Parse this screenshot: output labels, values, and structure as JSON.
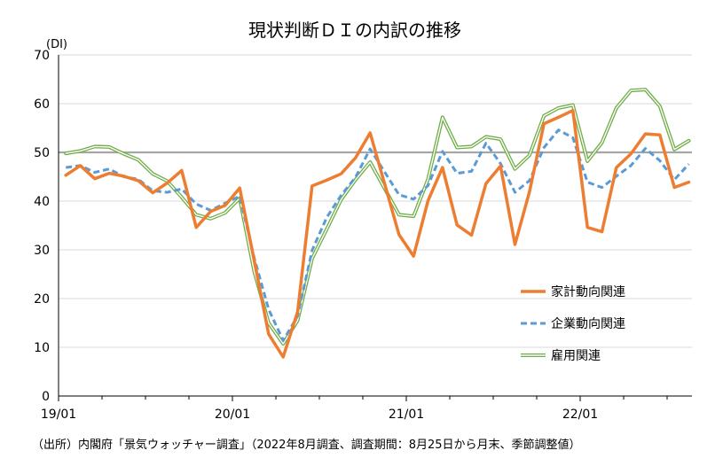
{
  "chart_data": {
    "type": "line",
    "title": "現状判断ＤＩの内訳の推移",
    "ylabel": "(DI)",
    "ylim": [
      0,
      70
    ],
    "yticks": [
      0,
      10,
      20,
      30,
      40,
      50,
      60,
      70
    ],
    "x": [
      "19/01",
      "19/02",
      "19/03",
      "19/04",
      "19/05",
      "19/06",
      "19/07",
      "19/08",
      "19/09",
      "19/10",
      "19/11",
      "19/12",
      "20/01",
      "20/02",
      "20/03",
      "20/04",
      "20/05",
      "20/06",
      "20/07",
      "20/08",
      "20/09",
      "20/10",
      "20/11",
      "20/12",
      "21/01",
      "21/02",
      "21/03",
      "21/04",
      "21/05",
      "21/06",
      "21/07",
      "21/08",
      "21/09",
      "21/10",
      "21/11",
      "21/12",
      "22/01",
      "22/02",
      "22/03",
      "22/04",
      "22/05",
      "22/06",
      "22/07",
      "22/08"
    ],
    "xtick_labels": [
      "19/01",
      "20/01",
      "21/01",
      "22/01"
    ],
    "reference_line": 50,
    "grid": "horizontal",
    "legend_position": "right",
    "series": [
      {
        "name": "家計動向関連",
        "color": "#ED7D31",
        "style": "solid",
        "values": [
          45.3,
          47.3,
          44.6,
          45.7,
          45.1,
          44.2,
          41.7,
          43.7,
          46.3,
          34.6,
          37.9,
          39.1,
          42.7,
          27.9,
          12.7,
          8.0,
          17.3,
          43.1,
          44.3,
          45.6,
          48.9,
          54.0,
          43.6,
          33.1,
          28.7,
          40.1,
          46.9,
          35.1,
          33.0,
          43.6,
          47.2,
          31.1,
          41.9,
          55.9,
          57.2,
          58.6,
          34.6,
          33.7,
          46.9,
          49.7,
          53.8,
          53.6,
          42.8,
          43.9
        ]
      },
      {
        "name": "企業動向関連",
        "color": "#5B9BD5",
        "style": "dashed",
        "values": [
          46.9,
          47.3,
          45.9,
          46.6,
          45.0,
          44.5,
          42.1,
          41.8,
          42.5,
          39.4,
          38.1,
          39.6,
          41.0,
          28.4,
          17.8,
          11.4,
          16.4,
          29.9,
          36.6,
          41.2,
          44.9,
          50.7,
          46.0,
          41.3,
          40.4,
          43.2,
          50.2,
          45.7,
          46.1,
          51.9,
          47.7,
          41.8,
          44.2,
          51.0,
          54.6,
          53.0,
          43.9,
          42.8,
          45.1,
          47.3,
          50.8,
          48.3,
          44.4,
          47.6
        ]
      },
      {
        "name": "雇用関連",
        "color": "#70AD47",
        "style": "double",
        "values": [
          49.8,
          50.3,
          51.2,
          51.1,
          49.7,
          48.5,
          45.6,
          44.1,
          40.8,
          37.2,
          36.4,
          37.6,
          40.6,
          25.6,
          15.0,
          10.7,
          15.5,
          28.2,
          34.2,
          40.3,
          44.4,
          48.0,
          42.6,
          37.2,
          36.9,
          44.5,
          57.2,
          51.0,
          51.2,
          53.2,
          52.7,
          46.6,
          49.4,
          57.5,
          59.1,
          59.7,
          48.2,
          52.0,
          59.1,
          62.7,
          62.9,
          59.5,
          50.6,
          52.4
        ]
      }
    ]
  },
  "source_note": "（出所）内閣府「景気ウォッチャー調査」（2022年8月調査、調査期間：8月25日から月末、季節調整値）"
}
